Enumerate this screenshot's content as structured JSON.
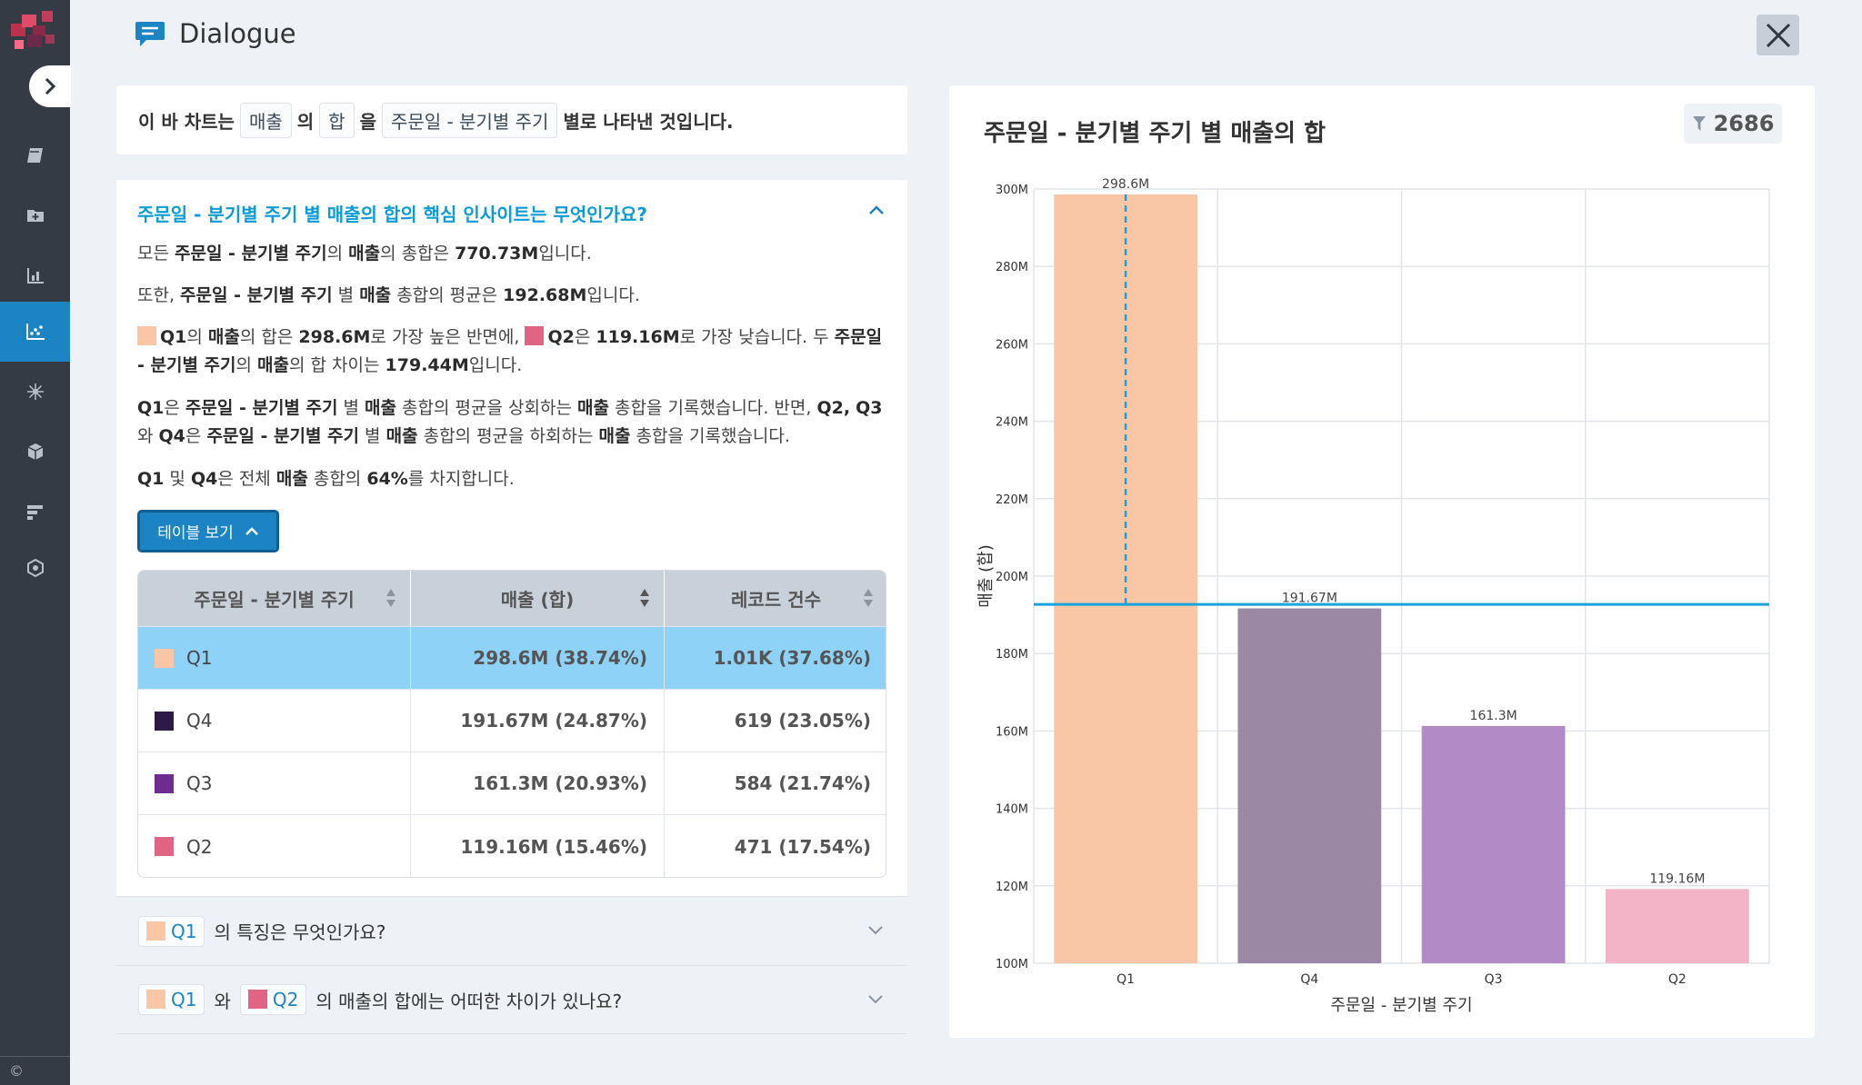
{
  "header": {
    "title": "Dialogue"
  },
  "summary": {
    "prefix": "이 바 차트는",
    "measure": "매출",
    "p1": "의",
    "agg": "합",
    "p2": "을",
    "dimension": "주문일 - 분기별 주기",
    "suffix": "별로 나타낸 것입니다."
  },
  "insight": {
    "question": "주문일 - 분기별 주기 별 매출의 합의 핵심 인사이트는 무엇인가요?",
    "total": {
      "a": "모든 ",
      "dim": "주문일 - 분기별 주기",
      "b": "의 ",
      "m": "매출",
      "c": "의 총합은 ",
      "v": "770.73M",
      "d": "입니다."
    },
    "avg": {
      "a": "또한, ",
      "dim": "주문일 - 분기별 주기",
      "b": " 별 ",
      "m": "매출",
      "c": " 총합의 평균은 ",
      "v": "192.68M",
      "d": "입니다."
    },
    "minmax": {
      "hi": "Q1",
      "a": "의 ",
      "m": "매출",
      "b": "의 합은 ",
      "hv": "298.6M",
      "c": "로 가장 높은 반면에, ",
      "lo": "Q2",
      "d": "은 ",
      "lv": "119.16M",
      "e": "로 가장 낮습니다. 두 ",
      "dim": "주문일 - 분기별 주기",
      "f": "의 ",
      "m2": "매출",
      "g": "의 합 차이는 ",
      "diff": "179.44M",
      "h": "입니다."
    },
    "compare": {
      "q1": "Q1",
      "a": "은 ",
      "dim": "주문일 - 분기별 주기",
      "b": " 별 ",
      "m": "매출",
      "c": " 총합의 평균을 상회하는 ",
      "m2": "매출",
      "d": " 총합을 기록했습니다. 반면, ",
      "q2": "Q2,",
      "q3": "Q3",
      "e": "와 ",
      "q4": "Q4",
      "f": "은 ",
      "dim2": "주문일 - 분기별 주기",
      "g": " 별 ",
      "m3": "매출",
      "h": " 총합의 평균을 하회하는 ",
      "m4": "매출",
      "i": " 총합을 기록했습니다."
    },
    "share": {
      "q1": "Q1",
      "a": " 및 ",
      "q4": "Q4",
      "b": "은 전체 ",
      "m": "매출",
      "c": " 총합의 ",
      "v": "64%",
      "d": "를 차지합니다."
    },
    "table_button": "테이블 보기"
  },
  "table": {
    "headers": [
      "주문일 - 분기별 주기",
      "매출 (합)",
      "레코드 건수"
    ],
    "rows": [
      {
        "label": "Q1",
        "sales": "298.6M (38.74%)",
        "count": "1.01K (37.68%)",
        "color": "#f9c7a5"
      },
      {
        "label": "Q4",
        "sales": "191.67M (24.87%)",
        "count": "619 (23.05%)",
        "color": "#2d1a46"
      },
      {
        "label": "Q3",
        "sales": "161.3M (20.93%)",
        "count": "584 (21.74%)",
        "color": "#6e2c91"
      },
      {
        "label": "Q2",
        "sales": "119.16M (15.46%)",
        "count": "471 (17.54%)",
        "color": "#e26485"
      }
    ]
  },
  "faq": [
    {
      "chip": "Q1",
      "chip_color": "#f9c7a5",
      "text": "의 특징은 무엇인가요?"
    },
    {
      "chip": "Q1",
      "chip_color": "#f9c7a5",
      "mid": "와",
      "chip2": "Q2",
      "chip2_color": "#e26485",
      "text": "의 매출의 합에는 어떠한 차이가 있나요?"
    }
  ],
  "chart": {
    "title": "주문일 - 분기별 주기 별 매출의 합",
    "filter_count": "2686"
  },
  "chart_data": {
    "type": "bar",
    "categories": [
      "Q1",
      "Q4",
      "Q3",
      "Q2"
    ],
    "values": [
      298.6,
      191.67,
      161.3,
      119.16
    ],
    "value_labels": [
      "298.6M",
      "191.67M",
      "161.3M",
      "119.16M"
    ],
    "colors": [
      "#f9c7a5",
      "#9b88a4",
      "#b28bc6",
      "#f3b4c7"
    ],
    "xlabel": "주문일 - 분기별 주기",
    "ylabel": "매출 (합)",
    "ylim": [
      100,
      300
    ],
    "yticks": [
      100,
      120,
      140,
      160,
      180,
      200,
      220,
      240,
      260,
      280,
      300
    ],
    "ytick_labels": [
      "100M",
      "120M",
      "140M",
      "160M",
      "180M",
      "200M",
      "220M",
      "240M",
      "260M",
      "280M",
      "300M"
    ],
    "average_line": 192.68,
    "grid": true
  },
  "colors": {
    "accent": "#1d84c4",
    "question": "#0b9bd6",
    "selected_row": "#8fd2f8"
  }
}
